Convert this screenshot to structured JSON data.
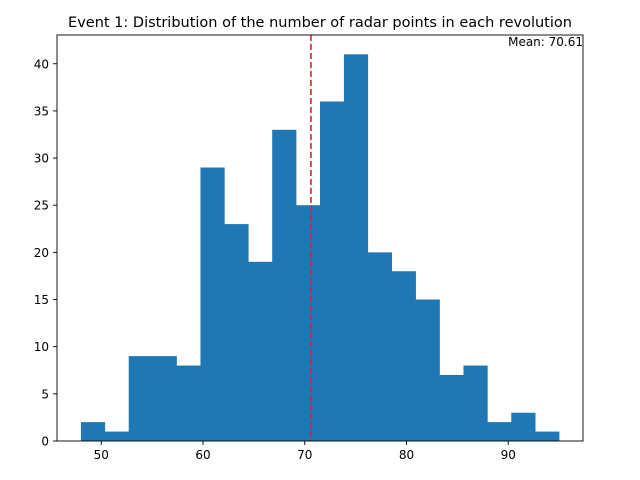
{
  "chart_data": {
    "type": "bar",
    "subtype": "histogram",
    "title": "Event 1: Distribution of the number of radar points in each revolution",
    "xlabel": "",
    "ylabel": "",
    "xlim": [
      45.65,
      97.35
    ],
    "ylim": [
      0,
      43.05
    ],
    "xticks": [
      50,
      60,
      70,
      80,
      90
    ],
    "yticks": [
      0,
      5,
      10,
      15,
      20,
      25,
      30,
      35,
      40
    ],
    "bin_edges": [
      48.0,
      50.35,
      52.7,
      55.05,
      57.4,
      59.75,
      62.1,
      64.45,
      66.8,
      69.15,
      71.5,
      73.85,
      76.2,
      78.55,
      80.9,
      83.25,
      85.6,
      87.95,
      90.3,
      92.65,
      95.0
    ],
    "values": [
      2,
      1,
      9,
      9,
      8,
      29,
      23,
      19,
      33,
      25,
      36,
      41,
      20,
      18,
      15,
      7,
      8,
      2,
      3,
      1
    ],
    "bar_color": "#1f77b4",
    "mean_line": {
      "x": 70.61,
      "color": "#d62728",
      "style": "dashed"
    },
    "annotation": "Mean: 70.61",
    "grid": false,
    "legend": "none"
  }
}
